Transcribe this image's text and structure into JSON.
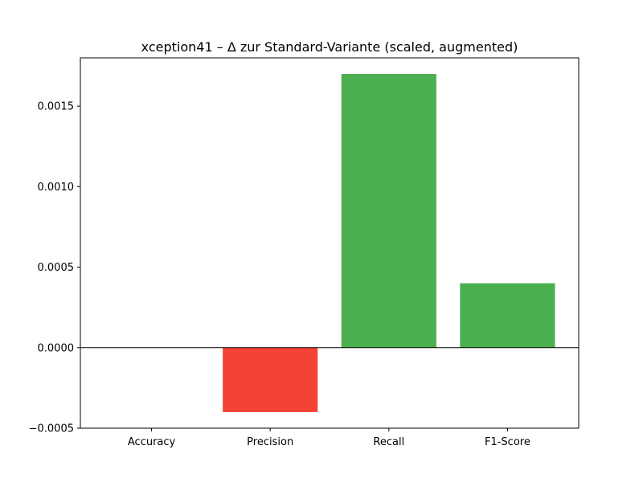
{
  "chart_data": {
    "type": "bar",
    "title": "xception41 – Δ zur Standard-Variante (scaled, augmented)",
    "xlabel": "",
    "ylabel": "",
    "categories": [
      "Accuracy",
      "Precision",
      "Recall",
      "F1-Score"
    ],
    "values": [
      0.0,
      -0.0004,
      0.0017,
      0.0004
    ],
    "ylim": [
      -0.0005,
      0.0018
    ],
    "yticks": [
      -0.0005,
      0.0,
      0.0005,
      0.001,
      0.0015
    ],
    "ytick_labels": [
      "−0.0005",
      "0.0000",
      "0.0005",
      "0.0010",
      "0.0015"
    ],
    "grid": false,
    "zero_line": true,
    "colors": {
      "positive": "#4caf50",
      "negative": "#f44336",
      "axis": "#000000"
    }
  }
}
